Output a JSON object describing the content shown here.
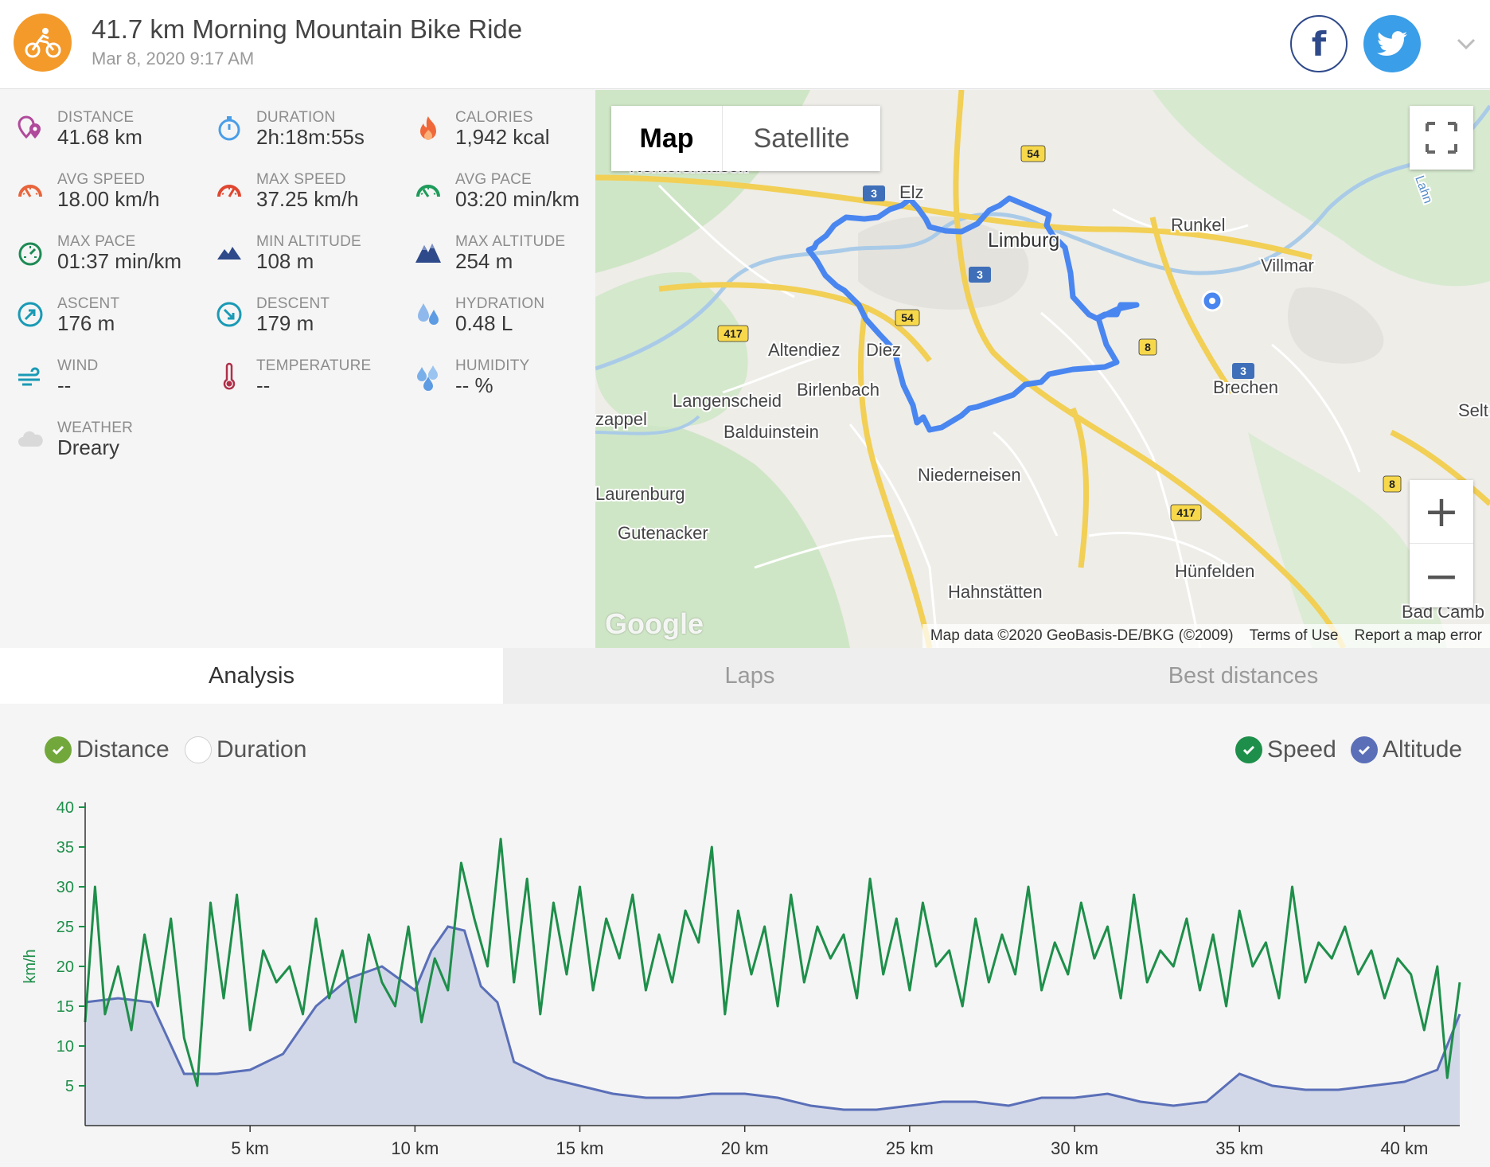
{
  "header": {
    "title": "41.7 km Morning Mountain Bike Ride",
    "date": "Mar 8, 2020 9:17 AM",
    "facebook_label": "f",
    "icons": {
      "activity": "bicycle-icon",
      "facebook": "facebook-icon",
      "twitter": "twitter-icon",
      "expand": "chevron-down-icon"
    },
    "colors": {
      "activity": "#f39a2b",
      "facebook": "#2f4a8a",
      "twitter": "#3a9ee8"
    }
  },
  "stats": [
    {
      "label": "DISTANCE",
      "value": "41.68 km",
      "icon": "distance-pin-icon"
    },
    {
      "label": "DURATION",
      "value": "2h:18m:55s",
      "icon": "stopwatch-icon"
    },
    {
      "label": "CALORIES",
      "value": "1,942 kcal",
      "icon": "flame-icon"
    },
    {
      "label": "AVG SPEED",
      "value": "18.00 km/h",
      "icon": "speedometer-icon"
    },
    {
      "label": "MAX SPEED",
      "value": "37.25 km/h",
      "icon": "speedometer-icon"
    },
    {
      "label": "AVG PACE",
      "value": "03:20 min/km",
      "icon": "pace-gauge-icon"
    },
    {
      "label": "MAX PACE",
      "value": "01:37 min/km",
      "icon": "pace-gauge-icon"
    },
    {
      "label": "MIN ALTITUDE",
      "value": "108 m",
      "icon": "mountain-icon"
    },
    {
      "label": "MAX ALTITUDE",
      "value": "254 m",
      "icon": "mountain-icon"
    },
    {
      "label": "ASCENT",
      "value": "176 m",
      "icon": "ascent-icon"
    },
    {
      "label": "DESCENT",
      "value": "179 m",
      "icon": "descent-icon"
    },
    {
      "label": "HYDRATION",
      "value": "0.48 L",
      "icon": "water-drops-icon"
    },
    {
      "label": "WIND",
      "value": "--",
      "icon": "wind-icon"
    },
    {
      "label": "TEMPERATURE",
      "value": "--",
      "icon": "thermometer-icon"
    },
    {
      "label": "HUMIDITY",
      "value": "-- %",
      "icon": "humidity-drops-icon"
    },
    {
      "label": "WEATHER",
      "value": "Dreary",
      "icon": "cloud-icon"
    }
  ],
  "map": {
    "toggle": {
      "map": "Map",
      "satellite": "Satellite",
      "selected": "Map"
    },
    "zoom_in": "+",
    "zoom_out": "−",
    "logo": "Google",
    "attribution": {
      "data": "Map data ©2020 GeoBasis-DE/BKG (©2009)",
      "terms": "Terms of Use",
      "report": "Report a map error"
    },
    "places": [
      "Nentershausen",
      "Elz",
      "Limburg",
      "Runkel",
      "Villmar",
      "Altendiez",
      "Diez",
      "Birlenbach",
      "Langenscheid",
      "Balduinstein",
      "Brechen",
      "Niederneisen",
      "Laurenburg",
      "Gutenacker",
      "Hünfelden",
      "Hahnstätten",
      "Bad Camb",
      "Selt",
      "zappel",
      "Lahn"
    ],
    "road_shields": [
      "3",
      "3",
      "3",
      "3",
      "54",
      "54",
      "8",
      "8",
      "417",
      "417"
    ],
    "route_color": "#4a86f0"
  },
  "tabs": [
    {
      "label": "Analysis",
      "active": true
    },
    {
      "label": "Laps",
      "active": false
    },
    {
      "label": "Best distances",
      "active": false
    }
  ],
  "analysis": {
    "x_axis_options": [
      {
        "label": "Distance",
        "checked": true
      },
      {
        "label": "Duration",
        "checked": false
      }
    ],
    "series_options": [
      {
        "label": "Speed",
        "checked": true
      },
      {
        "label": "Altitude",
        "checked": true
      }
    ]
  },
  "chart_data": {
    "type": "line",
    "xlabel": "",
    "ylabel": "km/h",
    "x_unit": "km",
    "xlim": [
      0,
      41.68
    ],
    "ylim": [
      0,
      40
    ],
    "x_ticks": [
      "5 km",
      "10 km",
      "15 km",
      "20 km",
      "25 km",
      "30 km",
      "35 km",
      "40 km"
    ],
    "y_ticks": [
      "5",
      "10",
      "15",
      "20",
      "25",
      "30",
      "35",
      "40"
    ],
    "grid": false,
    "series": [
      {
        "name": "Speed",
        "axis": "left",
        "color": "#1e8f4a",
        "x": [
          0,
          0.3,
          0.6,
          1,
          1.4,
          1.8,
          2.2,
          2.6,
          3,
          3.4,
          3.8,
          4.2,
          4.6,
          5,
          5.4,
          5.8,
          6.2,
          6.6,
          7,
          7.4,
          7.8,
          8.2,
          8.6,
          9,
          9.4,
          9.8,
          10.2,
          10.6,
          11,
          11.4,
          11.8,
          12.2,
          12.6,
          13,
          13.4,
          13.8,
          14.2,
          14.6,
          15,
          15.4,
          15.8,
          16.2,
          16.6,
          17,
          17.4,
          17.8,
          18.2,
          18.6,
          19,
          19.4,
          19.8,
          20.2,
          20.6,
          21,
          21.4,
          21.8,
          22.2,
          22.6,
          23,
          23.4,
          23.8,
          24.2,
          24.6,
          25,
          25.4,
          25.8,
          26.2,
          26.6,
          27,
          27.4,
          27.8,
          28.2,
          28.6,
          29,
          29.4,
          29.8,
          30.2,
          30.6,
          31,
          31.4,
          31.8,
          32.2,
          32.6,
          33,
          33.4,
          33.8,
          34.2,
          34.6,
          35,
          35.4,
          35.8,
          36.2,
          36.6,
          37,
          37.4,
          37.8,
          38.2,
          38.6,
          39,
          39.4,
          39.8,
          40.2,
          40.6,
          41,
          41.3,
          41.68
        ],
        "values": [
          13,
          30,
          14,
          20,
          12,
          24,
          15,
          26,
          11,
          5,
          28,
          16,
          29,
          12,
          22,
          18,
          20,
          14,
          26,
          16,
          22,
          13,
          24,
          18,
          15,
          25,
          13,
          21,
          17,
          33,
          26,
          20,
          36,
          18,
          31,
          14,
          28,
          19,
          30,
          17,
          26,
          21,
          29,
          17,
          24,
          18,
          27,
          23,
          35,
          14,
          27,
          19,
          25,
          15,
          29,
          18,
          25,
          21,
          24,
          16,
          31,
          19,
          26,
          17,
          28,
          20,
          22,
          15,
          26,
          18,
          24,
          19,
          30,
          17,
          23,
          19,
          28,
          21,
          25,
          16,
          29,
          18,
          22,
          20,
          26,
          17,
          24,
          15,
          27,
          20,
          23,
          16,
          30,
          18,
          23,
          21,
          25,
          19,
          22,
          16,
          21,
          19,
          12,
          20,
          6,
          18
        ]
      },
      {
        "name": "Altitude",
        "axis": "left_scaled",
        "color": "#5a6fb8",
        "fill": "#d3d8e8",
        "x": [
          0,
          1,
          2,
          3,
          4,
          5,
          6,
          7,
          8,
          9,
          10,
          10.5,
          11,
          11.5,
          12,
          12.5,
          13,
          14,
          15,
          16,
          17,
          18,
          19,
          20,
          21,
          22,
          23,
          24,
          25,
          26,
          27,
          28,
          29,
          30,
          31,
          32,
          33,
          34,
          35,
          36,
          37,
          38,
          39,
          40,
          41,
          41.68
        ],
        "values": [
          15.5,
          16,
          15.5,
          6.5,
          6.5,
          7,
          9,
          15,
          18.5,
          20,
          17,
          22,
          25,
          24.5,
          17.5,
          15.5,
          8,
          6,
          5,
          4,
          3.5,
          3.5,
          4,
          4,
          3.5,
          2.5,
          2,
          2,
          2.5,
          3,
          3,
          2.5,
          3.5,
          3.5,
          4,
          3,
          2.5,
          3,
          6.5,
          5,
          4.5,
          4.5,
          5,
          5.5,
          7,
          14
        ]
      }
    ]
  }
}
